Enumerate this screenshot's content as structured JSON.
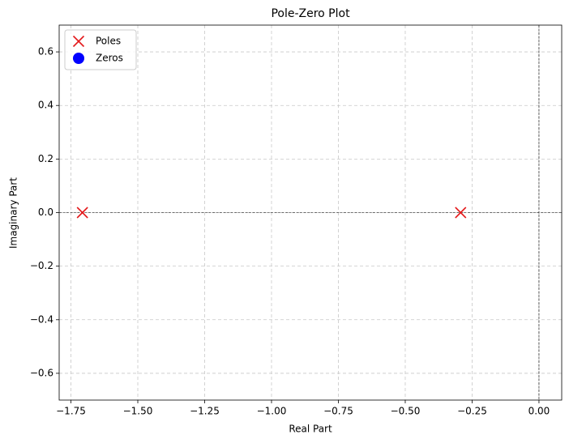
{
  "chart_data": {
    "type": "scatter",
    "title": "Pole-Zero Plot",
    "x_label": "Real Part",
    "y_label": "Imaginary Part",
    "series": [
      {
        "name": "Poles",
        "color": "#e41a1c",
        "marker": "x",
        "x": [
          -1.7071,
          -0.2929
        ],
        "y": [
          0,
          0
        ]
      },
      {
        "name": "Zeros",
        "color": "#0000ff",
        "marker": "o",
        "x": [],
        "y": []
      }
    ],
    "xlim": [
      -1.794,
      0.085
    ],
    "ylim": [
      -0.7,
      0.7
    ],
    "xticks": [
      {
        "value": -1.75,
        "label": "−1.75"
      },
      {
        "value": -1.5,
        "label": "−1.50"
      },
      {
        "value": -1.25,
        "label": "−1.25"
      },
      {
        "value": -1,
        "label": "−1.00"
      },
      {
        "value": -0.75,
        "label": "−0.75"
      },
      {
        "value": -0.5,
        "label": "−0.50"
      },
      {
        "value": -0.25,
        "label": "−0.25"
      },
      {
        "value": 0,
        "label": "0.00"
      }
    ],
    "yticks": [
      {
        "value": -0.6,
        "label": "−0.6"
      },
      {
        "value": -0.4,
        "label": "−0.4"
      },
      {
        "value": -0.2,
        "label": "−0.2"
      },
      {
        "value": 0,
        "label": "0.0"
      },
      0.2,
      0.4,
      0.6
    ],
    "hlines": [
      0
    ],
    "vlines": [
      0
    ],
    "grid": true,
    "legend": "upper left"
  }
}
